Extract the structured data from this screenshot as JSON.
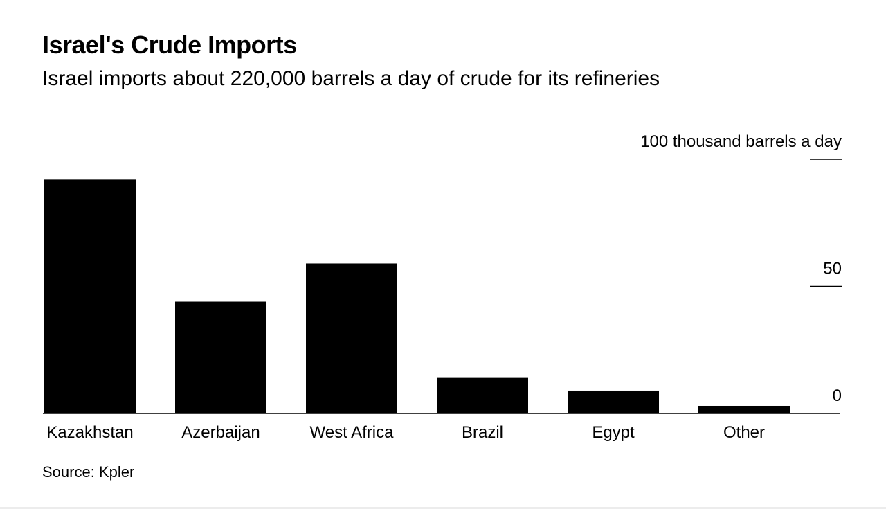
{
  "chart_data": {
    "type": "bar",
    "title": "Israel's Crude Imports",
    "subtitle": "Israel imports about 220,000 barrels a day of crude for its refineries",
    "ylabel": "100 thousand barrels a day",
    "xlabel": "",
    "categories": [
      "Kazakhstan",
      "Azerbaijan",
      "West Africa",
      "Brazil",
      "Egypt",
      "Other"
    ],
    "values": [
      92,
      44,
      59,
      14,
      9,
      3
    ],
    "ylim": [
      0,
      100
    ],
    "yticks": [
      0,
      50,
      100
    ],
    "ytick_labels": [
      "0",
      "50",
      "100 thousand barrels a day"
    ],
    "grid": false,
    "bar_color": "#000000",
    "source": "Source: Kpler"
  }
}
